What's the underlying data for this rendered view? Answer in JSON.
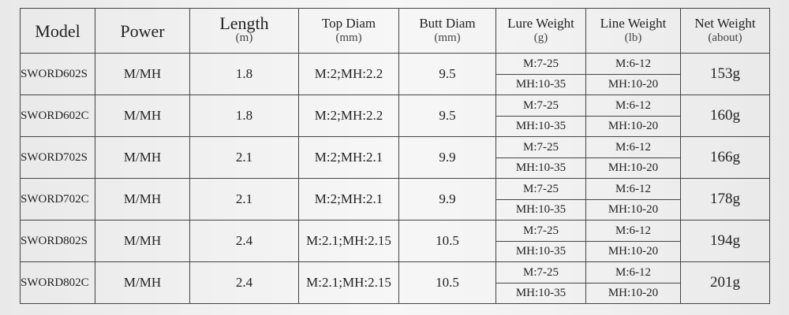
{
  "table": {
    "header": [
      {
        "title": "Model"
      },
      {
        "title": "Power"
      },
      {
        "title": "Length",
        "unit": "(m)"
      },
      {
        "title": "Top Diam",
        "unit": "(mm)"
      },
      {
        "title": "Butt Diam",
        "unit": "(mm)"
      },
      {
        "title": "Lure Weight",
        "unit": "(g)"
      },
      {
        "title": "Line Weight",
        "unit": "(lb)"
      },
      {
        "title": "Net Weight",
        "unit": "(about)"
      }
    ],
    "rows": [
      [
        "SWORD602S",
        "M/MH",
        "1.8",
        "M:2;MH:2.2",
        "9.5",
        [
          "M:7-25",
          "MH:10-35"
        ],
        [
          "M:6-12",
          "MH:10-20"
        ],
        "153g"
      ],
      [
        "SWORD602C",
        "M/MH",
        "1.8",
        "M:2;MH:2.2",
        "9.5",
        [
          "M:7-25",
          "MH:10-35"
        ],
        [
          "M:6-12",
          "MH:10-20"
        ],
        "160g"
      ],
      [
        "SWORD702S",
        "M/MH",
        "2.1",
        "M:2;MH:2.1",
        "9.9",
        [
          "M:7-25",
          "MH:10-35"
        ],
        [
          "M:6-12",
          "MH:10-20"
        ],
        "166g"
      ],
      [
        "SWORD702C",
        "M/MH",
        "2.1",
        "M:2;MH:2.1",
        "9.9",
        [
          "M:7-25",
          "MH:10-35"
        ],
        [
          "M:6-12",
          "MH:10-20"
        ],
        "178g"
      ],
      [
        "SWORD802S",
        "M/MH",
        "2.4",
        "M:2.1;MH:2.15",
        "10.5",
        [
          "M:7-25",
          "MH:10-35"
        ],
        [
          "M:6-12",
          "MH:10-20"
        ],
        "194g"
      ],
      [
        "SWORD802C",
        "M/MH",
        "2.4",
        "M:2.1;MH:2.15",
        "10.5",
        [
          "M:7-25",
          "MH:10-35"
        ],
        [
          "M:6-12",
          "MH:10-20"
        ],
        "201g"
      ]
    ]
  }
}
